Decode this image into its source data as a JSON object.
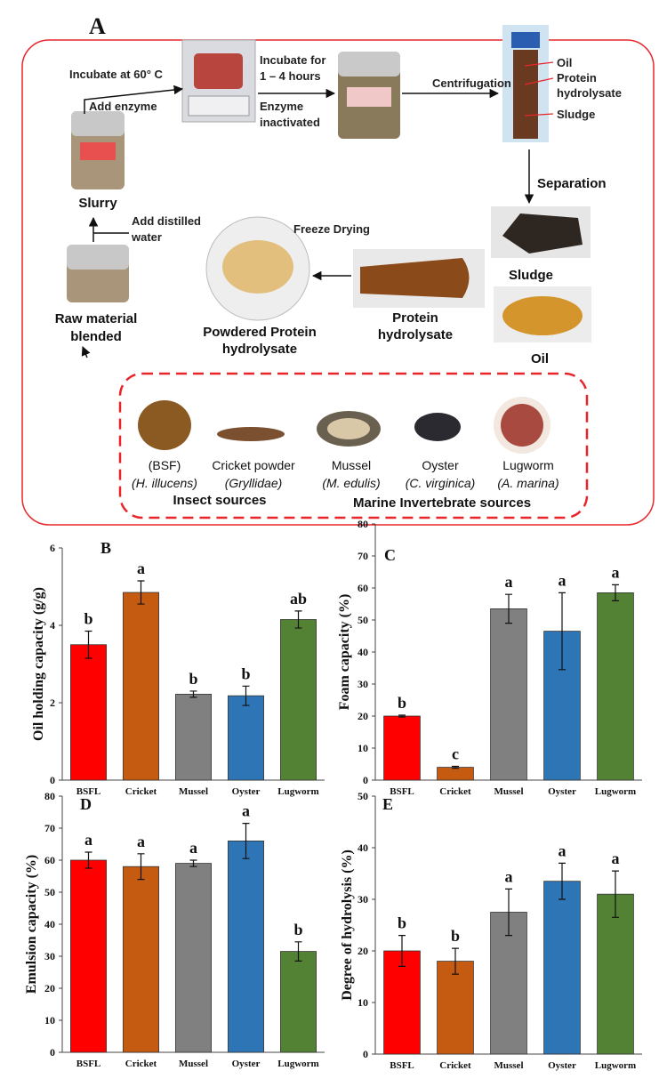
{
  "diagram": {
    "panel_label": "A",
    "incubate_temp": "Incubate at 60° C",
    "add_enzyme": "Add enzyme",
    "slurry": "Slurry",
    "incubate_time": [
      "Incubate for",
      "1 – 4 hours"
    ],
    "enzyme_inactivated": [
      "Enzyme",
      "inactivated"
    ],
    "centrifugation": "Centrifugation",
    "tube_labels": {
      "oil": "Oil",
      "protein": [
        "Protein",
        "hydrolysate"
      ],
      "sludge": "Sludge"
    },
    "separation": "Separation",
    "sludge": "Sludge",
    "oil": "Oil",
    "add_water": [
      "Add distilled",
      "water"
    ],
    "freeze_drying": "Freeze Drying",
    "protein_hydrolysate": [
      "Protein",
      "hydrolysate"
    ],
    "powdered": [
      "Powdered Protein",
      "hydrolysate"
    ],
    "raw_material": [
      "Raw material",
      "blended"
    ],
    "sources": [
      {
        "name": "(BSF)",
        "species": "(H. illucens)"
      },
      {
        "name": "Cricket powder",
        "species": "(Gryllidae)"
      },
      {
        "name": "Mussel",
        "species": "(M. edulis)"
      },
      {
        "name": "Oyster",
        "species": "(C. virginica)"
      },
      {
        "name": "Lugworm",
        "species": "(A. marina)"
      }
    ],
    "insect_sources": "Insect sources",
    "marine_sources": "Marine Invertebrate sources"
  },
  "chart_data": [
    {
      "type": "bar",
      "label": "B",
      "y_label": "Oil holding capacity (g/g)",
      "categories": [
        "BSFL",
        "Cricket",
        "Mussel",
        "Oyster",
        "Lugworm"
      ],
      "values": [
        3.5,
        4.85,
        2.22,
        2.18,
        4.15
      ],
      "errors": [
        0.35,
        0.3,
        0.08,
        0.25,
        0.22
      ],
      "annotations": [
        "b",
        "a",
        "b",
        "b",
        "ab"
      ],
      "colors": [
        "#ff0000",
        "#c55a11",
        "#808080",
        "#2e75b6",
        "#548235"
      ],
      "ylim": [
        0,
        6
      ],
      "yticks": [
        0,
        2,
        4,
        6
      ]
    },
    {
      "type": "bar",
      "label": "C",
      "y_label": "Foam capacity (%)",
      "categories": [
        "BSFL",
        "Cricket",
        "Mussel",
        "Oyster",
        "Lugworm"
      ],
      "values": [
        20,
        4,
        53.5,
        46.5,
        58.5
      ],
      "errors": [
        0.3,
        0.3,
        4.5,
        12,
        2.5
      ],
      "annotations": [
        "b",
        "c",
        "a",
        "a",
        "a"
      ],
      "colors": [
        "#ff0000",
        "#c55a11",
        "#808080",
        "#2e75b6",
        "#548235"
      ],
      "ylim": [
        0,
        80
      ],
      "yticks": [
        0,
        10,
        20,
        30,
        40,
        50,
        60,
        70,
        80
      ]
    },
    {
      "type": "bar",
      "label": "D",
      "y_label": "Emulsion capacity (%)",
      "categories": [
        "BSFL",
        "Cricket",
        "Mussel",
        "Oyster",
        "Lugworm"
      ],
      "values": [
        60,
        58,
        59,
        66,
        31.5
      ],
      "errors": [
        2.5,
        4,
        1,
        5.5,
        3
      ],
      "annotations": [
        "a",
        "a",
        "a",
        "a",
        "b"
      ],
      "colors": [
        "#ff0000",
        "#c55a11",
        "#808080",
        "#2e75b6",
        "#548235"
      ],
      "ylim": [
        0,
        80
      ],
      "yticks": [
        0,
        10,
        20,
        30,
        40,
        50,
        60,
        70,
        80
      ]
    },
    {
      "type": "bar",
      "label": "E",
      "y_label": "Degree of hydrolysis (%)",
      "categories": [
        "BSFL",
        "Cricket",
        "Mussel",
        "Oyster",
        "Lugworm"
      ],
      "values": [
        20,
        18,
        27.5,
        33.5,
        31
      ],
      "errors": [
        3,
        2.5,
        4.5,
        3.5,
        4.5
      ],
      "annotations": [
        "b",
        "b",
        "a",
        "a",
        "a"
      ],
      "colors": [
        "#ff0000",
        "#c55a11",
        "#808080",
        "#2e75b6",
        "#548235"
      ],
      "ylim": [
        0,
        50
      ],
      "yticks": [
        0,
        10,
        20,
        30,
        40,
        50
      ]
    }
  ]
}
